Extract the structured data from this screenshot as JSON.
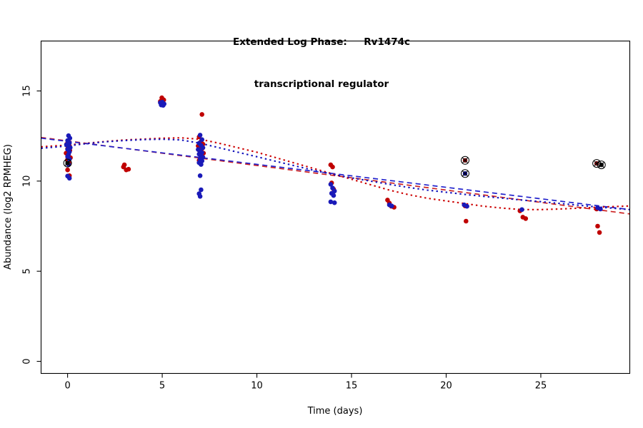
{
  "title": {
    "line1": "Extended Log Phase:     Rv1474c",
    "line2": "transcriptional regulator"
  },
  "chart_data": {
    "type": "scatter",
    "title": "Extended Log Phase: Rv1474c transcriptional regulator",
    "xlabel": "Time  (days)",
    "ylabel": "Abundance  (log2 RPMHEG)",
    "xlim": [
      -1.4,
      29.7
    ],
    "ylim": [
      -0.67,
      17.77
    ],
    "xticks": [
      0,
      5,
      10,
      15,
      20,
      25
    ],
    "yticks": [
      0,
      5,
      10,
      15
    ],
    "grid": false,
    "legend": "none",
    "colors": {
      "red": "#c00000",
      "blue": "#1a1ab8",
      "flag": "#000000"
    },
    "series": [
      {
        "name": "red-replicate",
        "color": "#c00000",
        "points": [
          [
            -0.05,
            12.05
          ],
          [
            0.1,
            11.95
          ],
          [
            0.0,
            11.8
          ],
          [
            0.12,
            11.7
          ],
          [
            -0.08,
            11.55
          ],
          [
            0.05,
            11.4
          ],
          [
            0.15,
            11.3
          ],
          [
            0.0,
            11.2
          ],
          [
            0.08,
            11.0
          ],
          [
            0.0,
            10.62
          ],
          [
            0.1,
            10.3
          ],
          [
            2.95,
            10.78
          ],
          [
            3.1,
            10.62
          ],
          [
            3.22,
            10.66
          ],
          [
            3.0,
            10.9
          ],
          [
            4.98,
            14.62
          ],
          [
            5.08,
            14.5
          ],
          [
            4.9,
            14.42
          ],
          [
            7.1,
            13.7
          ],
          [
            6.95,
            12.45
          ],
          [
            7.05,
            12.2
          ],
          [
            7.15,
            12.05
          ],
          [
            6.9,
            11.95
          ],
          [
            7.0,
            11.9
          ],
          [
            7.12,
            11.82
          ],
          [
            6.95,
            11.72
          ],
          [
            7.05,
            11.65
          ],
          [
            7.18,
            11.55
          ],
          [
            7.0,
            11.45
          ],
          [
            7.1,
            11.3
          ],
          [
            6.95,
            11.15
          ],
          [
            13.9,
            10.9
          ],
          [
            14.0,
            10.78
          ],
          [
            13.95,
            9.9
          ],
          [
            14.05,
            9.55
          ],
          [
            14.0,
            9.3
          ],
          [
            16.9,
            8.95
          ],
          [
            17.0,
            8.78
          ],
          [
            17.1,
            8.6
          ],
          [
            17.25,
            8.55
          ],
          [
            21.0,
            8.62
          ],
          [
            21.05,
            7.78
          ],
          [
            23.9,
            8.35
          ],
          [
            24.05,
            8.0
          ],
          [
            24.2,
            7.92
          ],
          [
            27.95,
            8.45
          ],
          [
            28.0,
            7.5
          ],
          [
            28.1,
            7.15
          ]
        ]
      },
      {
        "name": "blue-replicate",
        "color": "#1a1ab8",
        "points": [
          [
            0.05,
            12.52
          ],
          [
            0.12,
            12.38
          ],
          [
            0.0,
            12.25
          ],
          [
            0.1,
            12.12
          ],
          [
            -0.06,
            12.02
          ],
          [
            0.04,
            11.92
          ],
          [
            0.14,
            11.86
          ],
          [
            0.0,
            11.76
          ],
          [
            0.1,
            11.62
          ],
          [
            0.05,
            11.48
          ],
          [
            0.0,
            11.36
          ],
          [
            0.1,
            11.22
          ],
          [
            0.05,
            10.92
          ],
          [
            0.0,
            10.28
          ],
          [
            0.1,
            10.16
          ],
          [
            4.9,
            14.35
          ],
          [
            4.97,
            14.3
          ],
          [
            5.03,
            14.33
          ],
          [
            5.1,
            14.28
          ],
          [
            4.95,
            14.22
          ],
          [
            5.05,
            14.2
          ],
          [
            5.0,
            14.38
          ],
          [
            7.0,
            12.55
          ],
          [
            7.1,
            12.3
          ],
          [
            6.95,
            12.1
          ],
          [
            7.05,
            11.98
          ],
          [
            7.15,
            11.85
          ],
          [
            6.9,
            11.75
          ],
          [
            7.0,
            11.68
          ],
          [
            7.1,
            11.58
          ],
          [
            6.95,
            11.5
          ],
          [
            7.05,
            11.4
          ],
          [
            7.15,
            11.32
          ],
          [
            7.0,
            11.22
          ],
          [
            7.1,
            11.12
          ],
          [
            6.95,
            11.02
          ],
          [
            7.05,
            10.92
          ],
          [
            7.0,
            10.3
          ],
          [
            7.05,
            9.52
          ],
          [
            6.95,
            9.3
          ],
          [
            7.0,
            9.15
          ],
          [
            13.9,
            9.82
          ],
          [
            14.0,
            9.62
          ],
          [
            14.1,
            9.45
          ],
          [
            13.95,
            9.32
          ],
          [
            14.05,
            9.2
          ],
          [
            13.9,
            8.85
          ],
          [
            14.1,
            8.8
          ],
          [
            17.0,
            8.68
          ],
          [
            17.12,
            8.62
          ],
          [
            20.95,
            8.68
          ],
          [
            21.1,
            8.6
          ],
          [
            24.0,
            8.42
          ],
          [
            28.0,
            8.52
          ],
          [
            28.15,
            8.45
          ]
        ]
      }
    ],
    "flagged_points": [
      {
        "x": 0.0,
        "y": 11.0,
        "dot": "#111111"
      },
      {
        "x": 21.0,
        "y": 11.15,
        "dot": "#7a0000"
      },
      {
        "x": 21.0,
        "y": 10.42,
        "dot": "#00008b"
      },
      {
        "x": 27.95,
        "y": 10.98,
        "dot": "#7a0000"
      },
      {
        "x": 28.2,
        "y": 10.9,
        "dot": "#111111"
      }
    ],
    "lines": [
      {
        "name": "red-linear-fit",
        "style": "dashed",
        "color": "#cc2222",
        "points": [
          [
            -1.4,
            12.42
          ],
          [
            29.7,
            8.18
          ]
        ]
      },
      {
        "name": "blue-linear-fit",
        "style": "dashed",
        "color": "#2222cc",
        "points": [
          [
            -1.4,
            12.38
          ],
          [
            29.7,
            8.42
          ]
        ]
      },
      {
        "name": "red-loess-fit",
        "style": "dotted",
        "color": "#cc0000",
        "points": [
          [
            -1.4,
            11.9
          ],
          [
            0,
            12.0
          ],
          [
            1,
            12.1
          ],
          [
            2,
            12.2
          ],
          [
            3,
            12.28
          ],
          [
            4,
            12.33
          ],
          [
            5,
            12.38
          ],
          [
            6,
            12.4
          ],
          [
            7,
            12.32
          ],
          [
            8,
            12.1
          ],
          [
            9,
            11.85
          ],
          [
            10,
            11.6
          ],
          [
            11,
            11.3
          ],
          [
            12,
            11.0
          ],
          [
            13,
            10.7
          ],
          [
            14,
            10.4
          ],
          [
            15,
            10.1
          ],
          [
            16,
            9.8
          ],
          [
            17,
            9.5
          ],
          [
            18,
            9.25
          ],
          [
            19,
            9.05
          ],
          [
            20,
            8.9
          ],
          [
            21,
            8.75
          ],
          [
            22,
            8.6
          ],
          [
            23,
            8.5
          ],
          [
            24,
            8.42
          ],
          [
            25,
            8.42
          ],
          [
            26,
            8.45
          ],
          [
            27,
            8.5
          ],
          [
            28,
            8.55
          ],
          [
            29.7,
            8.62
          ]
        ]
      },
      {
        "name": "blue-loess-fit",
        "style": "dotted",
        "color": "#1111bb",
        "points": [
          [
            -1.4,
            11.82
          ],
          [
            0,
            11.95
          ],
          [
            1,
            12.08
          ],
          [
            2,
            12.18
          ],
          [
            3,
            12.25
          ],
          [
            4,
            12.3
          ],
          [
            5,
            12.32
          ],
          [
            6,
            12.28
          ],
          [
            7,
            12.1
          ],
          [
            8,
            11.85
          ],
          [
            9,
            11.6
          ],
          [
            10,
            11.35
          ],
          [
            11,
            11.1
          ],
          [
            12,
            10.85
          ],
          [
            13,
            10.6
          ],
          [
            14,
            10.38
          ],
          [
            15,
            10.18
          ],
          [
            16,
            10.0
          ],
          [
            17,
            9.82
          ],
          [
            18,
            9.65
          ],
          [
            19,
            9.5
          ],
          [
            20,
            9.38
          ],
          [
            21,
            9.26
          ],
          [
            22,
            9.15
          ],
          [
            23,
            9.05
          ],
          [
            24,
            8.95
          ],
          [
            25,
            8.86
          ],
          [
            26,
            8.76
          ],
          [
            27,
            8.66
          ],
          [
            28,
            8.56
          ],
          [
            29.7,
            8.42
          ]
        ]
      }
    ]
  }
}
